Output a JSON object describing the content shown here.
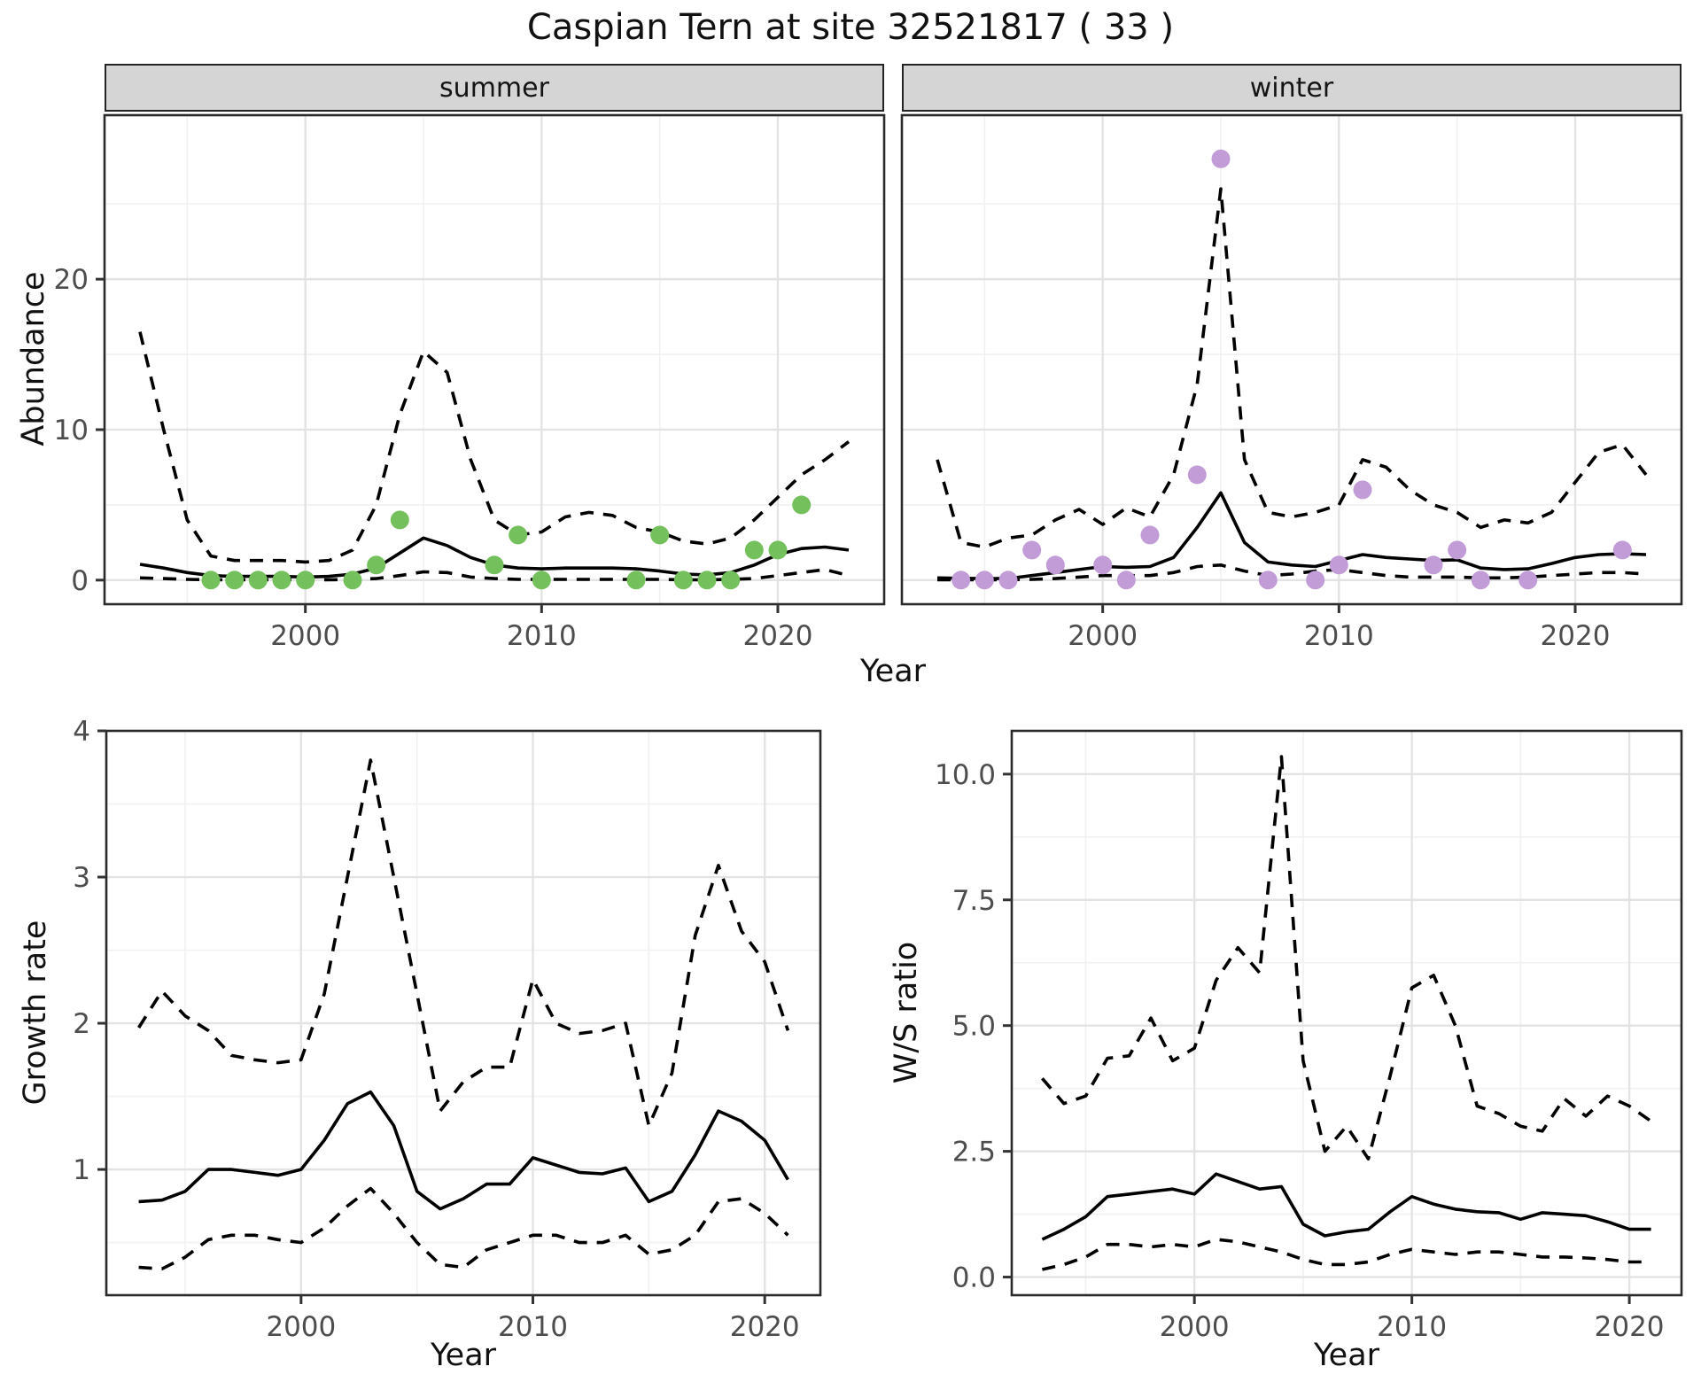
{
  "title": "Caspian Tern at site 32521817 ( 33 )",
  "colors": {
    "summer_point": "#74c05c",
    "winter_point": "#c29cd6",
    "line": "#000000",
    "grid_major": "#e3e3e3",
    "grid_minor": "#f1f1f1",
    "panel_border": "#2a2a2a",
    "strip_bg": "#d5d5d5",
    "tick_text": "#4d4d4d",
    "tick_mark": "#333333"
  },
  "chart_data": [
    {
      "type": "line",
      "panel": "summer",
      "facet_label": "summer",
      "xlabel": "Year",
      "ylabel": "Abundance",
      "xlim": [
        1991.5,
        2024.5
      ],
      "ylim": [
        -1.6,
        30.9
      ],
      "x_ticks": [
        2000,
        2010,
        2020
      ],
      "x_tick_labels": [
        "2000",
        "2010",
        "2020"
      ],
      "x_minor": [
        1995,
        2005,
        2015
      ],
      "y_ticks": [
        0,
        10,
        20
      ],
      "y_tick_labels": [
        "0",
        "10",
        "20"
      ],
      "y_minor": [
        5,
        15,
        25
      ],
      "show_y_tick_labels": true,
      "grid": true,
      "years": [
        1993,
        1994,
        1995,
        1996,
        1997,
        1998,
        1999,
        2000,
        2001,
        2002,
        2003,
        2004,
        2005,
        2006,
        2007,
        2008,
        2009,
        2010,
        2011,
        2012,
        2013,
        2014,
        2015,
        2016,
        2017,
        2018,
        2019,
        2020,
        2021,
        2022,
        2023
      ],
      "series": [
        {
          "name": "mean",
          "style": "solid",
          "values": [
            1.05,
            0.8,
            0.5,
            0.3,
            0.25,
            0.25,
            0.25,
            0.2,
            0.25,
            0.4,
            0.8,
            1.8,
            2.8,
            2.3,
            1.5,
            1.0,
            0.8,
            0.75,
            0.8,
            0.8,
            0.8,
            0.75,
            0.6,
            0.4,
            0.35,
            0.5,
            1.0,
            1.7,
            2.1,
            2.2,
            2.0
          ]
        },
        {
          "name": "upper_ci",
          "style": "dashed",
          "values": [
            16.5,
            10.0,
            4.0,
            1.6,
            1.3,
            1.3,
            1.3,
            1.2,
            1.3,
            2.0,
            5.0,
            11.0,
            15.2,
            13.8,
            8.0,
            4.0,
            3.0,
            3.2,
            4.2,
            4.5,
            4.3,
            3.5,
            3.2,
            2.6,
            2.4,
            2.8,
            4.0,
            5.5,
            7.0,
            8.0,
            9.2
          ]
        },
        {
          "name": "lower_ci",
          "style": "dashed",
          "values": [
            0.15,
            0.1,
            0.05,
            0.02,
            0.02,
            0.02,
            0.02,
            0.02,
            0.02,
            0.05,
            0.1,
            0.3,
            0.55,
            0.5,
            0.2,
            0.1,
            0.05,
            0.05,
            0.05,
            0.05,
            0.05,
            0.05,
            0.05,
            0.02,
            0.02,
            0.05,
            0.1,
            0.3,
            0.5,
            0.7,
            0.3
          ]
        }
      ],
      "points": {
        "name": "observed-counts",
        "color_key": "summer_point",
        "data": [
          [
            1996,
            0
          ],
          [
            1997,
            0
          ],
          [
            1998,
            0
          ],
          [
            1999,
            0
          ],
          [
            2000,
            0
          ],
          [
            2002,
            0
          ],
          [
            2003,
            1
          ],
          [
            2004,
            4
          ],
          [
            2008,
            1
          ],
          [
            2009,
            3
          ],
          [
            2010,
            0
          ],
          [
            2014,
            0
          ],
          [
            2015,
            3
          ],
          [
            2016,
            0
          ],
          [
            2017,
            0
          ],
          [
            2018,
            0
          ],
          [
            2019,
            2
          ],
          [
            2020,
            2
          ],
          [
            2021,
            5
          ]
        ]
      }
    },
    {
      "type": "line",
      "panel": "winter",
      "facet_label": "winter",
      "xlabel": "Year",
      "ylabel": "Abundance",
      "xlim": [
        1991.5,
        2024.5
      ],
      "ylim": [
        -1.6,
        30.9
      ],
      "x_ticks": [
        2000,
        2010,
        2020
      ],
      "x_tick_labels": [
        "2000",
        "2010",
        "2020"
      ],
      "x_minor": [
        1995,
        2005,
        2015
      ],
      "y_ticks": [
        0,
        10,
        20
      ],
      "y_tick_labels": [
        "0",
        "10",
        "20"
      ],
      "y_minor": [
        5,
        15,
        25
      ],
      "show_y_tick_labels": false,
      "grid": true,
      "years": [
        1993,
        1994,
        1995,
        1996,
        1997,
        1998,
        1999,
        2000,
        2001,
        2002,
        2003,
        2004,
        2005,
        2006,
        2007,
        2008,
        2009,
        2010,
        2011,
        2012,
        2013,
        2014,
        2015,
        2016,
        2017,
        2018,
        2019,
        2020,
        2021,
        2022,
        2023
      ],
      "series": [
        {
          "name": "mean",
          "style": "solid",
          "values": [
            0.15,
            0.12,
            0.1,
            0.1,
            0.3,
            0.5,
            0.7,
            0.9,
            0.85,
            0.9,
            1.5,
            3.5,
            5.8,
            2.5,
            1.2,
            1.0,
            0.9,
            1.3,
            1.7,
            1.5,
            1.4,
            1.3,
            1.35,
            0.8,
            0.7,
            0.75,
            1.1,
            1.5,
            1.7,
            1.75,
            1.7
          ]
        },
        {
          "name": "upper_ci",
          "style": "dashed",
          "values": [
            8.0,
            2.5,
            2.2,
            2.8,
            3.0,
            4.0,
            4.7,
            3.7,
            4.8,
            4.2,
            7.0,
            13.0,
            26.0,
            8.0,
            4.5,
            4.2,
            4.5,
            5.0,
            8.0,
            7.5,
            6.0,
            5.0,
            4.5,
            3.5,
            4.0,
            3.8,
            4.5,
            6.5,
            8.5,
            9.0,
            7.0
          ]
        },
        {
          "name": "lower_ci",
          "style": "dashed",
          "values": [
            0.02,
            0.02,
            0.02,
            0.02,
            0.05,
            0.1,
            0.2,
            0.3,
            0.3,
            0.3,
            0.5,
            0.9,
            1.0,
            0.6,
            0.3,
            0.4,
            0.6,
            0.7,
            0.5,
            0.3,
            0.2,
            0.2,
            0.2,
            0.15,
            0.15,
            0.2,
            0.3,
            0.4,
            0.5,
            0.5,
            0.4
          ]
        }
      ],
      "points": {
        "name": "observed-counts",
        "color_key": "winter_point",
        "data": [
          [
            1994,
            0
          ],
          [
            1995,
            0
          ],
          [
            1996,
            0
          ],
          [
            1997,
            2
          ],
          [
            1998,
            1
          ],
          [
            2000,
            1
          ],
          [
            2001,
            0
          ],
          [
            2002,
            3
          ],
          [
            2004,
            7
          ],
          [
            2005,
            28
          ],
          [
            2007,
            0
          ],
          [
            2009,
            0
          ],
          [
            2010,
            1
          ],
          [
            2011,
            6
          ],
          [
            2014,
            1
          ],
          [
            2015,
            2
          ],
          [
            2016,
            0
          ],
          [
            2018,
            0
          ],
          [
            2022,
            2
          ]
        ]
      }
    },
    {
      "type": "line",
      "panel": "growth",
      "facet_label": "",
      "xlabel": "Year",
      "ylabel": "Growth rate",
      "xlim": [
        1991.6,
        2022.4
      ],
      "ylim": [
        0.14,
        4.0
      ],
      "x_ticks": [
        2000,
        2010,
        2020
      ],
      "x_tick_labels": [
        "2000",
        "2010",
        "2020"
      ],
      "x_minor": [
        1995,
        2005,
        2015
      ],
      "y_ticks": [
        1,
        2,
        3,
        4
      ],
      "y_tick_labels": [
        "1",
        "2",
        "3",
        "4"
      ],
      "y_minor": [
        0.5,
        1.5,
        2.5,
        3.5
      ],
      "show_y_tick_labels": true,
      "grid": true,
      "years": [
        1993,
        1994,
        1995,
        1996,
        1997,
        1998,
        1999,
        2000,
        2001,
        2002,
        2003,
        2004,
        2005,
        2006,
        2007,
        2008,
        2009,
        2010,
        2011,
        2012,
        2013,
        2014,
        2015,
        2016,
        2017,
        2018,
        2019,
        2020,
        2021
      ],
      "series": [
        {
          "name": "mean",
          "style": "solid",
          "values": [
            0.78,
            0.79,
            0.85,
            1.0,
            1.0,
            0.98,
            0.96,
            1.0,
            1.2,
            1.45,
            1.53,
            1.3,
            0.85,
            0.73,
            0.8,
            0.9,
            0.9,
            1.08,
            1.03,
            0.98,
            0.97,
            1.01,
            0.78,
            0.85,
            1.1,
            1.4,
            1.33,
            1.2,
            0.93
          ]
        },
        {
          "name": "upper_ci",
          "style": "dashed",
          "values": [
            1.97,
            2.22,
            2.05,
            1.95,
            1.78,
            1.75,
            1.73,
            1.75,
            2.2,
            3.0,
            3.8,
            3.0,
            2.2,
            1.4,
            1.6,
            1.7,
            1.7,
            2.3,
            2.0,
            1.93,
            1.95,
            2.0,
            1.3,
            1.66,
            2.6,
            3.08,
            2.63,
            2.42,
            1.95
          ]
        },
        {
          "name": "lower_ci",
          "style": "dashed",
          "values": [
            0.33,
            0.32,
            0.4,
            0.52,
            0.55,
            0.55,
            0.52,
            0.5,
            0.6,
            0.75,
            0.87,
            0.7,
            0.5,
            0.35,
            0.33,
            0.45,
            0.5,
            0.55,
            0.55,
            0.5,
            0.5,
            0.55,
            0.42,
            0.45,
            0.55,
            0.78,
            0.8,
            0.7,
            0.55
          ]
        }
      ],
      "points": null
    },
    {
      "type": "line",
      "panel": "ws_ratio",
      "facet_label": "",
      "xlabel": "Year",
      "ylabel": "W/S ratio",
      "xlim": [
        1991.6,
        2022.4
      ],
      "ylim": [
        -0.36,
        10.86
      ],
      "x_ticks": [
        2000,
        2010,
        2020
      ],
      "x_tick_labels": [
        "2000",
        "2010",
        "2020"
      ],
      "x_minor": [
        1995,
        2005,
        2015
      ],
      "y_ticks": [
        0,
        2.5,
        5,
        7.5,
        10
      ],
      "y_tick_labels": [
        "0.0",
        "2.5",
        "5.0",
        "7.5",
        "10.0"
      ],
      "y_minor": [
        1.25,
        3.75,
        6.25,
        8.75
      ],
      "show_y_tick_labels": true,
      "grid": true,
      "years": [
        1993,
        1994,
        1995,
        1996,
        1997,
        1998,
        1999,
        2000,
        2001,
        2002,
        2003,
        2004,
        2005,
        2006,
        2007,
        2008,
        2009,
        2010,
        2011,
        2012,
        2013,
        2014,
        2015,
        2016,
        2017,
        2018,
        2019,
        2020,
        2021
      ],
      "series": [
        {
          "name": "mean",
          "style": "solid",
          "values": [
            0.75,
            0.95,
            1.2,
            1.6,
            1.65,
            1.7,
            1.75,
            1.65,
            2.05,
            1.9,
            1.75,
            1.8,
            1.05,
            0.82,
            0.9,
            0.95,
            1.3,
            1.6,
            1.45,
            1.35,
            1.3,
            1.28,
            1.15,
            1.28,
            1.25,
            1.22,
            1.1,
            0.95,
            0.95
          ]
        },
        {
          "name": "upper_ci",
          "style": "dashed",
          "values": [
            3.95,
            3.45,
            3.6,
            4.35,
            4.4,
            5.15,
            4.3,
            4.55,
            5.9,
            6.55,
            6.05,
            10.35,
            4.3,
            2.5,
            3.0,
            2.35,
            4.0,
            5.75,
            6.0,
            5.0,
            3.4,
            3.25,
            3.0,
            2.9,
            3.55,
            3.2,
            3.6,
            3.4,
            3.1
          ]
        },
        {
          "name": "lower_ci",
          "style": "dashed",
          "values": [
            0.15,
            0.25,
            0.4,
            0.65,
            0.65,
            0.6,
            0.65,
            0.6,
            0.75,
            0.7,
            0.6,
            0.5,
            0.35,
            0.25,
            0.25,
            0.3,
            0.45,
            0.55,
            0.5,
            0.45,
            0.5,
            0.5,
            0.45,
            0.4,
            0.4,
            0.38,
            0.35,
            0.3,
            0.3
          ]
        }
      ],
      "points": null
    }
  ]
}
